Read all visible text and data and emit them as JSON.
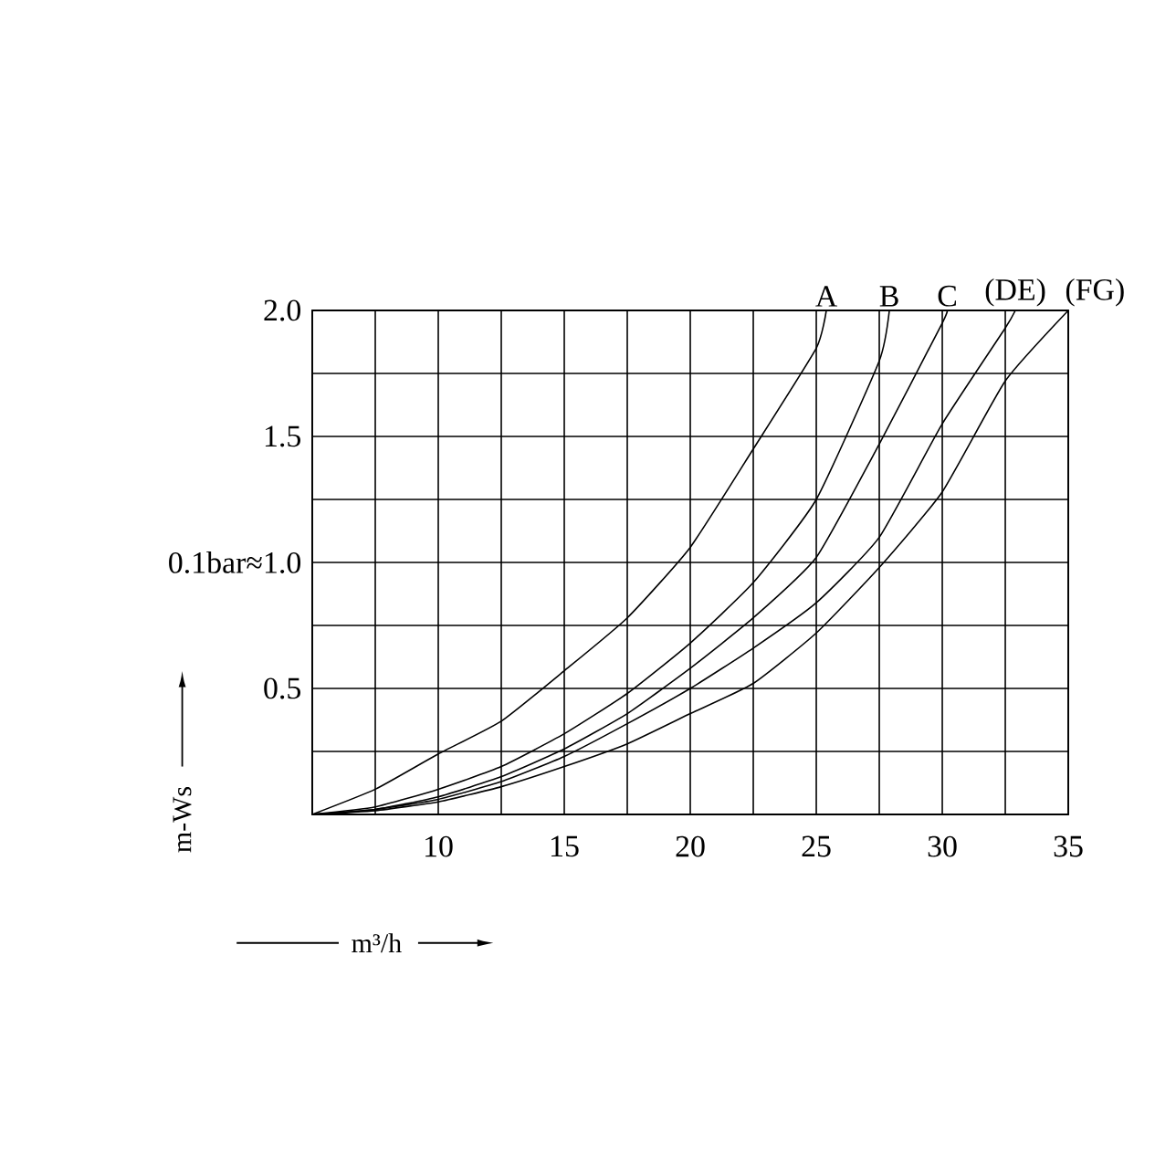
{
  "chart_data": {
    "type": "line",
    "xlabel": "m³/h",
    "ylabel": "m-Ws",
    "xlim": [
      5,
      35
    ],
    "ylim": [
      0,
      2.0
    ],
    "xticks": [
      {
        "value": 5,
        "label": null
      },
      {
        "value": 7.5,
        "label": null
      },
      10,
      {
        "value": 12.5,
        "label": null
      },
      15,
      {
        "value": 17.5,
        "label": null
      },
      20,
      {
        "value": 22.5,
        "label": null
      },
      25,
      {
        "value": 27.5,
        "label": null
      },
      30,
      {
        "value": 32.5,
        "label": null
      },
      35
    ],
    "yticks": [
      {
        "value": 0,
        "label": null
      },
      {
        "value": 0.25,
        "label": null
      },
      0.5,
      {
        "value": 0.75,
        "label": null
      },
      {
        "value": 1.0,
        "label": "0.1bar≈1.0"
      },
      {
        "value": 1.25,
        "label": null
      },
      1.5,
      {
        "value": 1.75,
        "label": null
      },
      {
        "value": 2.0,
        "label": "2.0"
      }
    ],
    "grid": true,
    "legend": false,
    "series": [
      {
        "name": "A",
        "color": "#000000",
        "x": [
          5,
          7.5,
          10,
          12.5,
          15,
          17.5,
          20,
          22.5,
          25,
          25.4
        ],
        "values": [
          0,
          0.1,
          0.24,
          0.37,
          0.57,
          0.78,
          1.06,
          1.45,
          1.85,
          2.0
        ]
      },
      {
        "name": "B",
        "color": "#000000",
        "x": [
          5,
          7.5,
          10,
          12.5,
          15,
          17.5,
          20,
          22.5,
          25,
          27.5,
          27.9
        ],
        "values": [
          0,
          0.03,
          0.1,
          0.19,
          0.32,
          0.48,
          0.68,
          0.92,
          1.25,
          1.8,
          2.0
        ]
      },
      {
        "name": "C",
        "color": "#000000",
        "x": [
          5,
          7.5,
          10,
          12.5,
          15,
          17.5,
          20,
          22.5,
          25,
          27.5,
          30,
          30.2
        ],
        "values": [
          0,
          0.02,
          0.07,
          0.15,
          0.26,
          0.4,
          0.58,
          0.78,
          1.02,
          1.47,
          1.95,
          2.0
        ]
      },
      {
        "name": "(DE)",
        "color": "#000000",
        "x": [
          5,
          7.5,
          10,
          12.5,
          15,
          17.5,
          20,
          22.5,
          25,
          27.5,
          30,
          32.5,
          32.9
        ],
        "values": [
          0,
          0.02,
          0.06,
          0.13,
          0.23,
          0.36,
          0.5,
          0.66,
          0.84,
          1.1,
          1.55,
          1.93,
          2.0
        ]
      },
      {
        "name": "(FG)",
        "color": "#000000",
        "x": [
          5,
          7.5,
          10,
          12.5,
          15,
          17.5,
          20,
          22.5,
          25,
          27.5,
          30,
          32.5,
          35
        ],
        "values": [
          0,
          0.015,
          0.05,
          0.11,
          0.19,
          0.28,
          0.4,
          0.52,
          0.72,
          0.98,
          1.28,
          1.72,
          2.0
        ]
      }
    ]
  }
}
